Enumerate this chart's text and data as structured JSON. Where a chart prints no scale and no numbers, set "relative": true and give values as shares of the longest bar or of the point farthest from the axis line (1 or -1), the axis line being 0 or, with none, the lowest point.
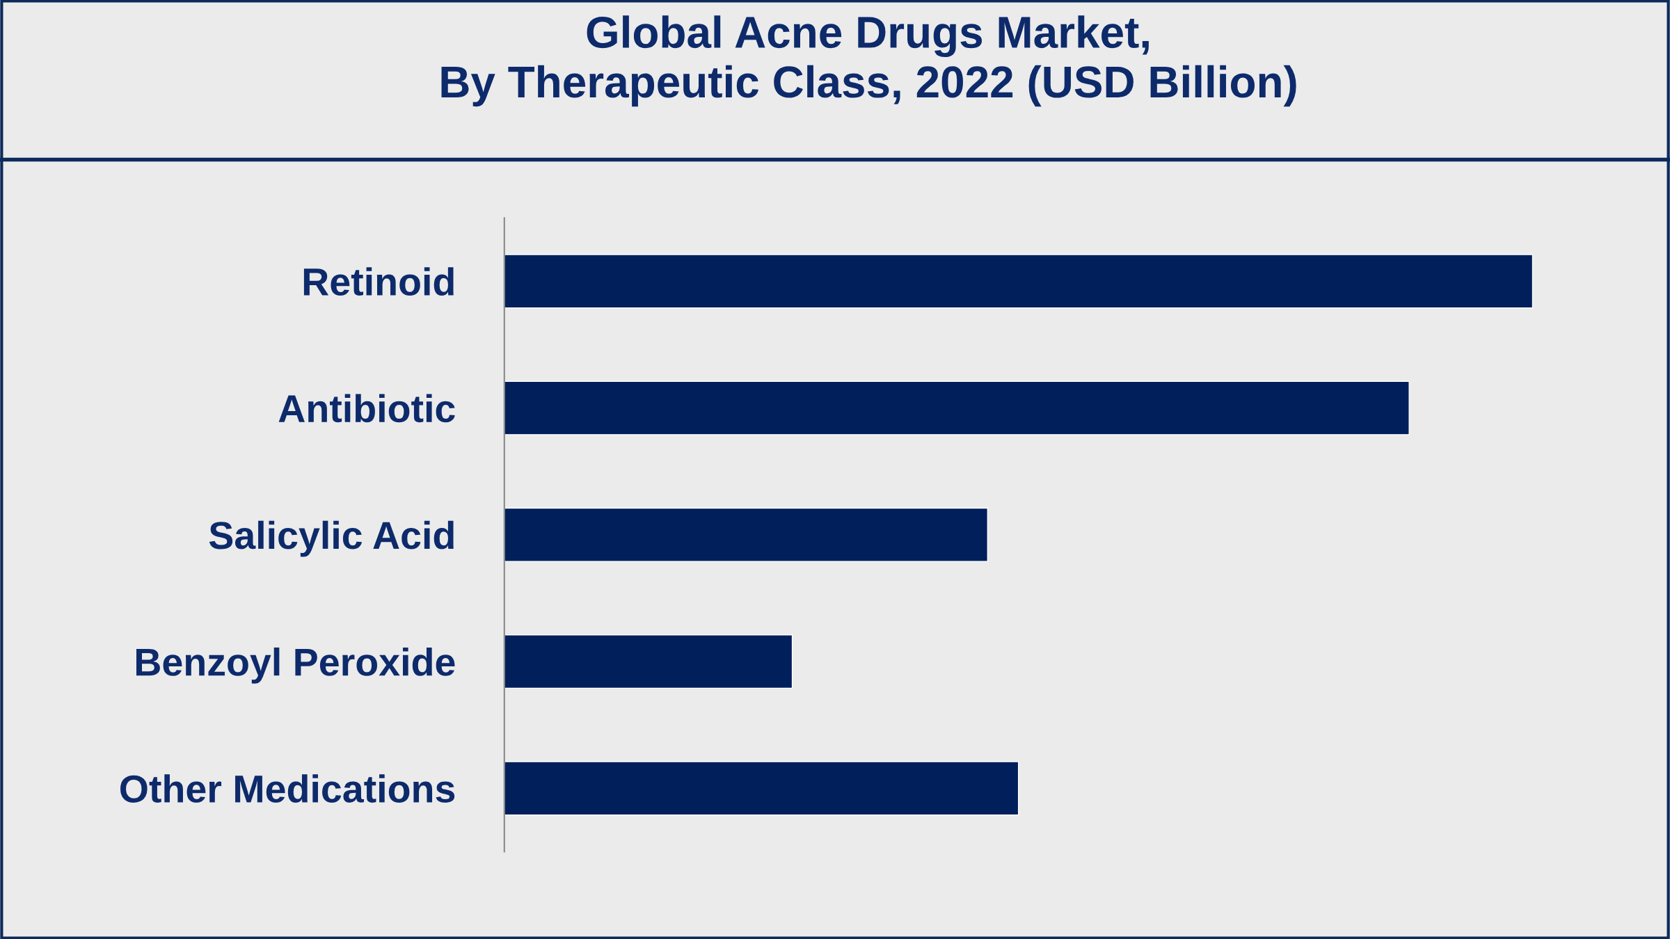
{
  "chart_data": {
    "type": "bar",
    "orientation": "horizontal",
    "relative": true,
    "title": "Global Acne Drugs Market,\nBy Therapeutic Class, 2022 (USD Billion)",
    "categories": [
      "Retinoid",
      "Antibiotic",
      "Salicylic Acid",
      "Benzoyl Peroxide",
      "Other Medications"
    ],
    "values": [
      1,
      0.88,
      0.47,
      0.28,
      0.5
    ],
    "color": "#001f5b",
    "grid": false,
    "legend": false
  }
}
